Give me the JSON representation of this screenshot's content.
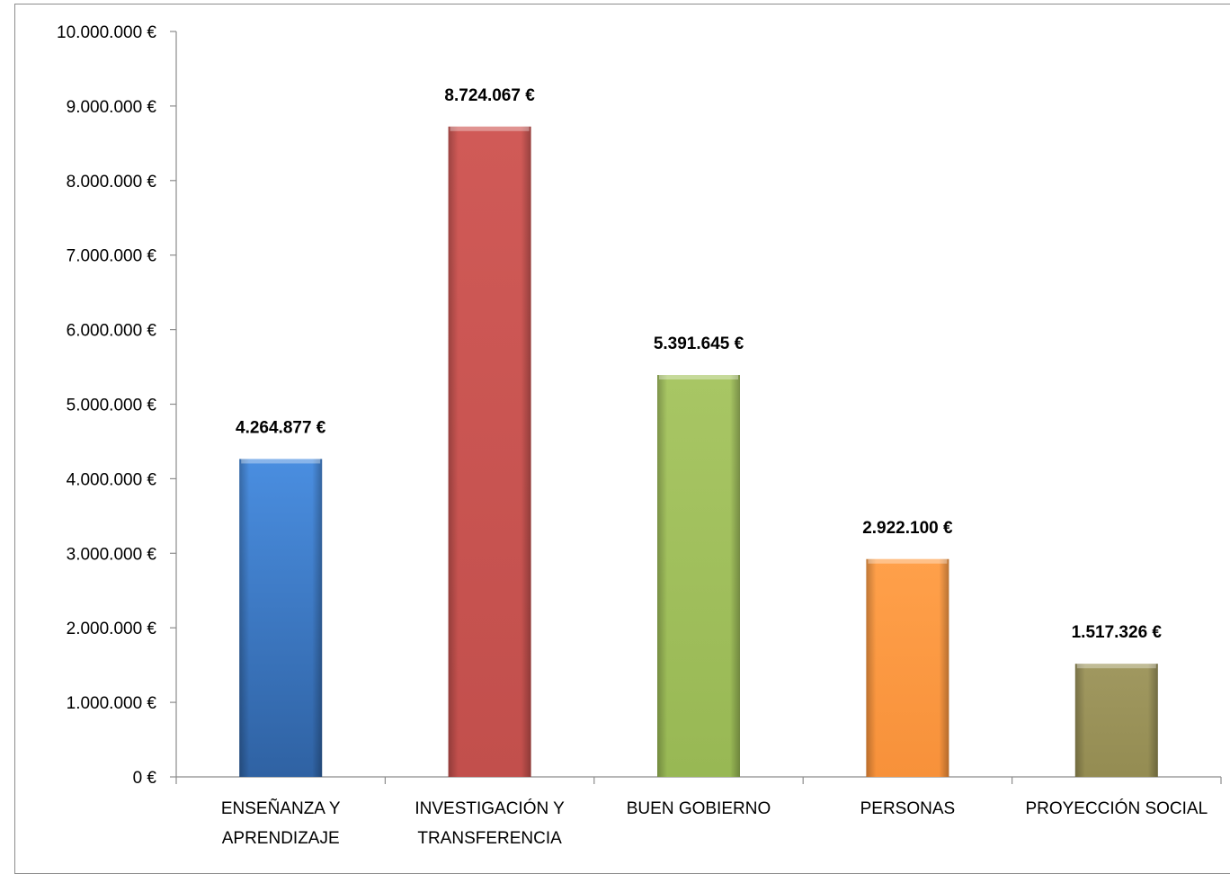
{
  "chart_data": {
    "type": "bar",
    "title": "",
    "xlabel": "",
    "ylabel": "",
    "ylim": [
      0,
      10000000
    ],
    "ytick_step": 1000000,
    "ytick_labels": [
      "0 €",
      "1.000.000 €",
      "2.000.000 €",
      "3.000.000 €",
      "4.000.000 €",
      "5.000.000 €",
      "6.000.000 €",
      "7.000.000 €",
      "8.000.000 €",
      "9.000.000 €",
      "10.000.000 €"
    ],
    "grid": false,
    "legend": "none",
    "categories": [
      [
        "ENSEÑANZA Y",
        "APRENDIZAJE"
      ],
      [
        "INVESTIGACIÓN Y",
        "TRANSFERENCIA"
      ],
      [
        "BUEN GOBIERNO"
      ],
      [
        "PERSONAS"
      ],
      [
        "PROYECCIÓN SOCIAL"
      ]
    ],
    "values": [
      4264877,
      8724067,
      5391645,
      2922100,
      1517326
    ],
    "data_labels": [
      "4.264.877 €",
      "8.724.067 €",
      "5.391.645 €",
      "2.922.100 €",
      "1.517.326 €"
    ],
    "colors": [
      [
        "#4a8ee0",
        "#2f62a3"
      ],
      [
        "#d05a57",
        "#c24f4c"
      ],
      [
        "#a8c664",
        "#98b854"
      ],
      [
        "#ffa04a",
        "#f7913a"
      ],
      [
        "#a09860",
        "#948c52"
      ]
    ]
  }
}
